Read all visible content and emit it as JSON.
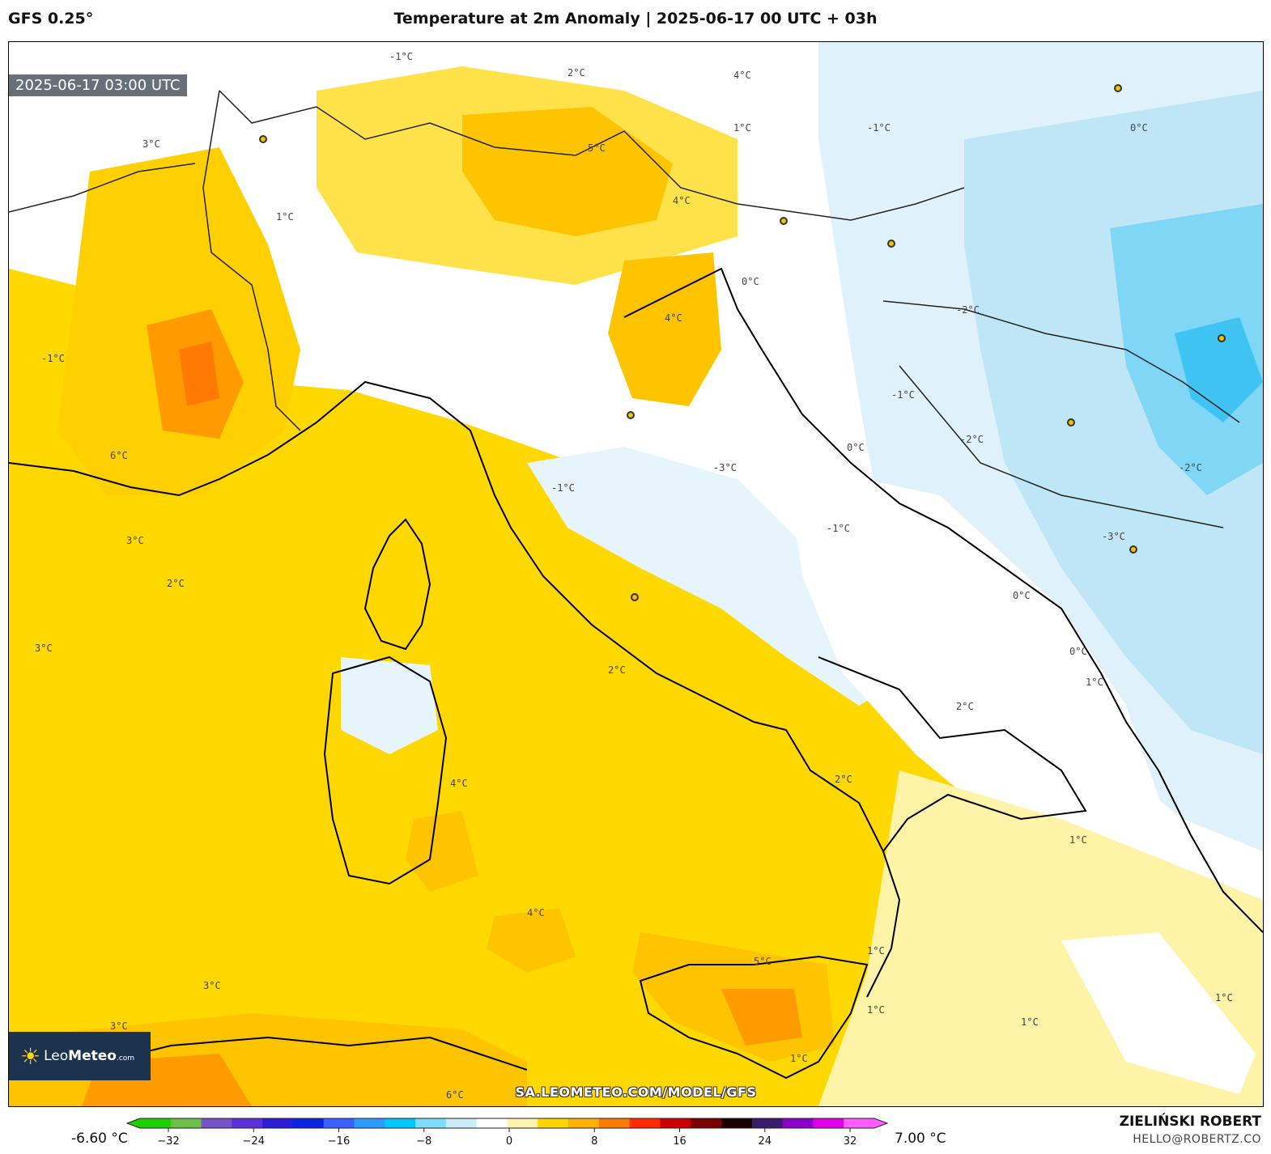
{
  "header": {
    "model": "GFS 0.25°",
    "title": "Temperature at 2m Anomaly | 2025-06-17 00 UTC + 03h"
  },
  "map": {
    "valid_time": "2025-06-17 03:00 UTC",
    "watermark": "SA.LEOMETEO.COM/MODEL/GFS",
    "logo": {
      "brand_light": "Leo",
      "brand_bold": "Meteo",
      "suffix": ".com"
    },
    "contour_labels": [
      "-3°C",
      "-2°C",
      "-1°C",
      "0°C",
      "1°C",
      "2°C",
      "3°C",
      "4°C",
      "5°C",
      "6°C"
    ]
  },
  "colorbar": {
    "min_label": "-6.60 °C",
    "max_label": "7.00 °C",
    "ticks": [
      "−32",
      "−24",
      "−16",
      "−8",
      "0",
      "8",
      "16",
      "24",
      "32"
    ],
    "colors": [
      "#1fd000",
      "#6cc04a",
      "#7a52c7",
      "#5a30d8",
      "#2a1fd6",
      "#0a24e0",
      "#3c60ff",
      "#2b9cff",
      "#00c7ff",
      "#7fdcff",
      "#c9ecfa",
      "#ffffff",
      "#fff3b0",
      "#ffd500",
      "#ffb000",
      "#ff7a00",
      "#ff2a00",
      "#c80000",
      "#7a0000",
      "#1a0000",
      "#3a1a6a",
      "#8a00c8",
      "#e100e8",
      "#ff5cff"
    ]
  },
  "footer": {
    "author": "ZIELIŃSKI ROBERT",
    "email": "HELLO@ROBERTZ.CO"
  },
  "legend_colors": {
    "cold_2": "#7fd6f5",
    "cold_1": "#bfe6f6",
    "neutral": "#ffffff",
    "warm_1": "#fff0a0",
    "warm_2": "#ffe24a",
    "warm_3": "#ffd200",
    "warm_4": "#ffb800",
    "warm_5": "#ff9800",
    "warm_6": "#ff7a00"
  }
}
